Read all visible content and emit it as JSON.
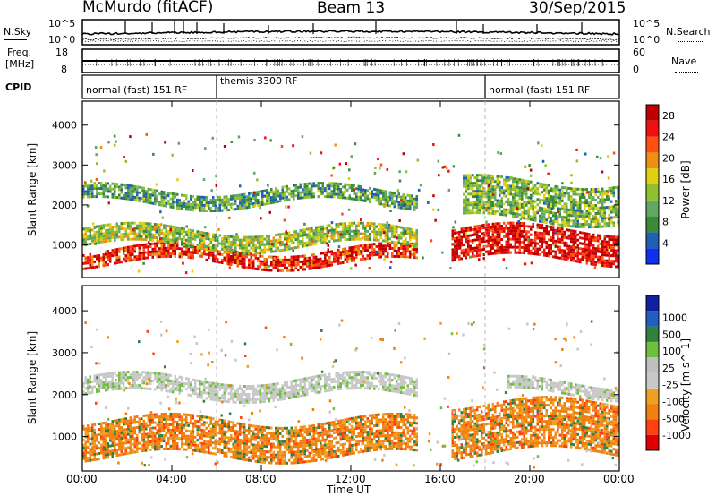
{
  "header": {
    "station": "McMurdo (fitACF)",
    "beam": "Beam 13",
    "date": "30/Sep/2015"
  },
  "top_panels": {
    "noise": {
      "left_label": "N.Sky",
      "right_label": "N.Search",
      "left_ticks": [
        "10^5",
        "10^0"
      ],
      "right_ticks": [
        "10^5",
        "10^0"
      ]
    },
    "freq": {
      "left_label_1": "Freq.",
      "left_label_2": "[MHz]",
      "right_label": "Nave",
      "left_ticks": [
        "18",
        "8"
      ],
      "right_ticks": [
        "60",
        "0"
      ]
    },
    "cpid": {
      "label": "CPID",
      "segments": [
        {
          "text": "normal (fast) 151 RF",
          "start_hour": 0,
          "end_hour": 6
        },
        {
          "text": "themis 3300 RF",
          "start_hour": 6,
          "end_hour": 18
        },
        {
          "text": "normal (fast) 151 RF",
          "start_hour": 18,
          "end_hour": 24
        }
      ]
    }
  },
  "x_axis": {
    "label": "Time UT",
    "ticks": [
      "00:00",
      "04:00",
      "08:00",
      "12:00",
      "16:00",
      "20:00",
      "00:00"
    ]
  },
  "colors": {
    "power": [
      "#1030f0",
      "#2060b0",
      "#3a8a3a",
      "#62a862",
      "#90c030",
      "#e0d010",
      "#f09010",
      "#ff5010",
      "#f01010",
      "#c00000"
    ],
    "velocity": [
      "#e00000",
      "#ff4010",
      "#f08010",
      "#f0a020",
      "#c8c8c8",
      "#c0c0c0",
      "#70c040",
      "#308040",
      "#2060c0",
      "#1020a0"
    ]
  },
  "chart_data": [
    {
      "type": "heatmap",
      "title": "",
      "xlabel": "Time UT",
      "ylabel": "Slant Range [km]",
      "xlim": [
        0,
        24
      ],
      "ylim": [
        180,
        4600
      ],
      "yticks": [
        "1000",
        "2000",
        "3000",
        "4000"
      ],
      "colorbar": {
        "label": "Power [dB]",
        "ticks": [
          "4",
          "8",
          "12",
          "16",
          "20",
          "24",
          "28"
        ],
        "range": [
          0,
          30
        ]
      },
      "features": [
        {
          "t_start": 0,
          "t_end": 15,
          "range_start": 550,
          "range_end": 900,
          "value": 24
        },
        {
          "t_start": 0,
          "t_end": 15,
          "range_start": 950,
          "range_end": 1400,
          "value": 12
        },
        {
          "t_start": 0,
          "t_end": 15,
          "range_start": 2000,
          "range_end": 2400,
          "value": 8
        },
        {
          "t_start": 16.5,
          "t_end": 24,
          "range_start": 600,
          "range_end": 1400,
          "value": 26
        },
        {
          "t_start": 17,
          "t_end": 24,
          "range_start": 1600,
          "range_end": 2600,
          "value": 10
        }
      ]
    },
    {
      "type": "heatmap",
      "title": "",
      "xlabel": "Time UT",
      "ylabel": "Slant Range [km]",
      "xlim": [
        0,
        24
      ],
      "ylim": [
        180,
        4600
      ],
      "yticks": [
        "1000",
        "2000",
        "3000",
        "4000"
      ],
      "colorbar": {
        "label": "Velocity [m s^-1]",
        "ticks": [
          "1000",
          "500",
          "100",
          "25",
          "-25",
          "-100",
          "-500",
          "-1000"
        ]
      },
      "features": [
        {
          "t_start": 0,
          "t_end": 15,
          "range_start": 550,
          "range_end": 1400,
          "value": -100
        },
        {
          "t_start": 0,
          "t_end": 15,
          "range_start": 2000,
          "range_end": 2400,
          "value": 0
        },
        {
          "t_start": 16.5,
          "t_end": 24,
          "range_start": 600,
          "range_end": 1800,
          "value": -100
        },
        {
          "t_start": 19,
          "t_end": 24,
          "range_start": 2000,
          "range_end": 2300,
          "value": 0
        }
      ]
    }
  ]
}
